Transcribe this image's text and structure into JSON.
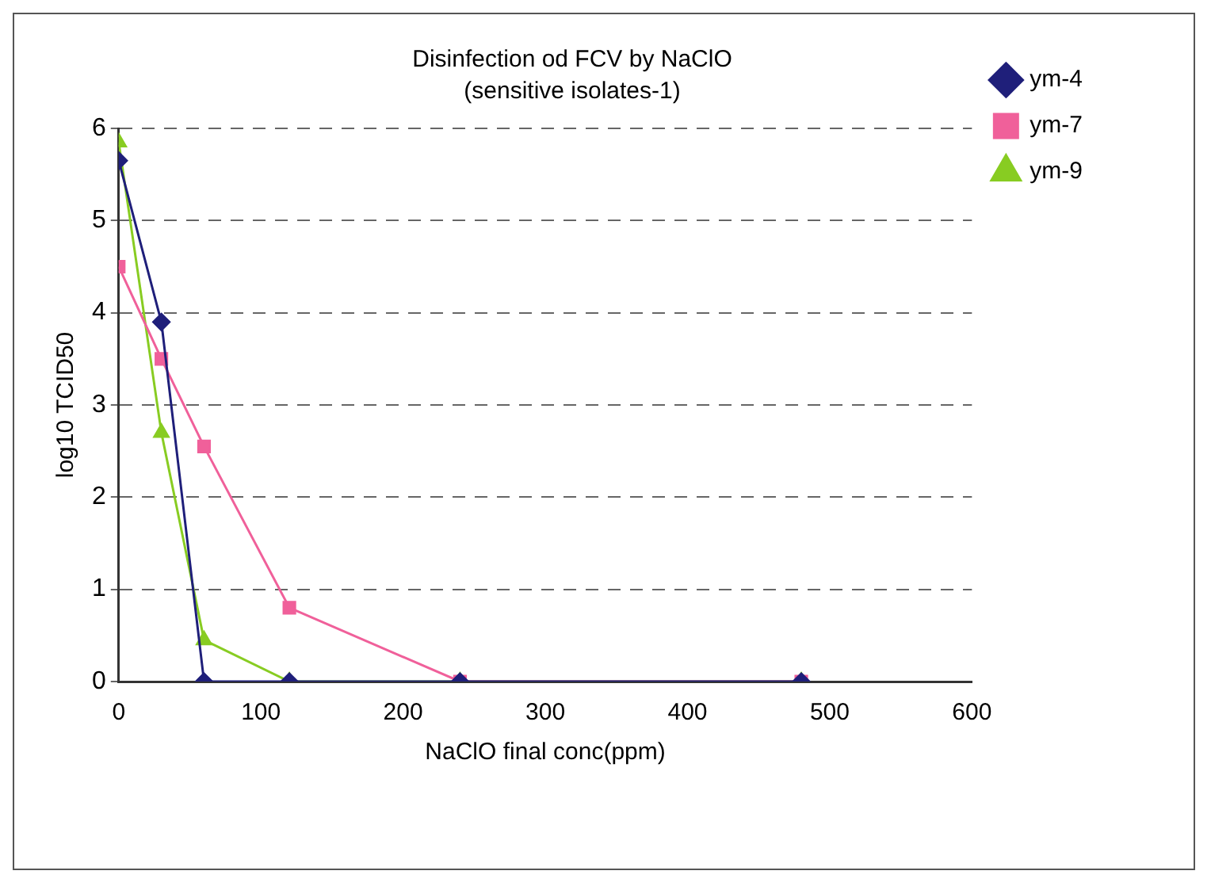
{
  "chart_data": {
    "type": "line",
    "title": "Disinfection od FCV by NaClO",
    "subtitle": "(sensitive isolates-1)",
    "xlabel": "NaClO final conc(ppm)",
    "ylabel": "log10 TCID50",
    "x": [
      0,
      30,
      60,
      120,
      240,
      480
    ],
    "series": [
      {
        "name": "ym-4",
        "color": "#1f1f7a",
        "marker": "diamond",
        "values": [
          5.65,
          3.9,
          0,
          0,
          0,
          0
        ]
      },
      {
        "name": "ym-7",
        "color": "#f0609a",
        "marker": "square",
        "values": [
          4.5,
          3.5,
          2.55,
          0.8,
          0,
          0
        ]
      },
      {
        "name": "ym-9",
        "color": "#88cc22",
        "marker": "triangle",
        "values": [
          5.85,
          2.7,
          0.45,
          0,
          0,
          0
        ]
      }
    ],
    "xlim": [
      0,
      600
    ],
    "xticks": [
      0,
      100,
      200,
      300,
      400,
      500,
      600
    ],
    "ylim": [
      0,
      6
    ],
    "yticks": [
      0,
      1,
      2,
      3,
      4,
      5,
      6
    ],
    "grid": "y",
    "legend": "top right",
    "line_style": "solid"
  }
}
